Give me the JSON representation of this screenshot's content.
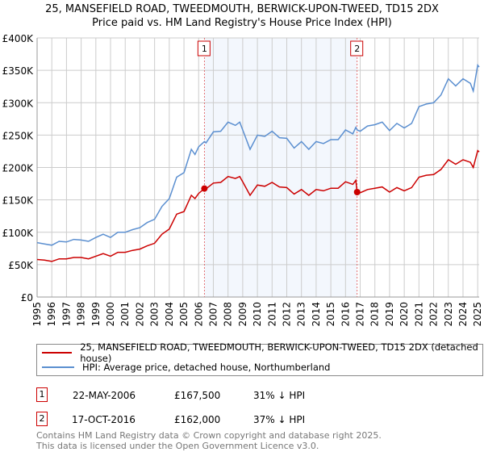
{
  "chart_data": {
    "type": "line",
    "title": "25, MANSEFIELD ROAD, TWEEDMOUTH, BERWICK-UPON-TWEED, TD15 2DX",
    "subtitle": "Price paid vs. HM Land Registry's House Price Index (HPI)",
    "xlim": [
      1995,
      2025.1
    ],
    "ylim": [
      0,
      400000
    ],
    "x_ticks": [
      "1995",
      "1996",
      "1997",
      "1998",
      "1999",
      "2000",
      "2001",
      "2002",
      "2003",
      "2004",
      "2005",
      "2006",
      "2007",
      "2008",
      "2009",
      "2010",
      "2011",
      "2012",
      "2013",
      "2014",
      "2015",
      "2016",
      "2017",
      "2018",
      "2019",
      "2020",
      "2021",
      "2022",
      "2023",
      "2024",
      "2025"
    ],
    "y_ticks": [
      {
        "v": 0,
        "label": "£0"
      },
      {
        "v": 50000,
        "label": "£50K"
      },
      {
        "v": 100000,
        "label": "£100K"
      },
      {
        "v": 150000,
        "label": "£150K"
      },
      {
        "v": 200000,
        "label": "£200K"
      },
      {
        "v": 250000,
        "label": "£250K"
      },
      {
        "v": 300000,
        "label": "£300K"
      },
      {
        "v": 350000,
        "label": "£350K"
      },
      {
        "v": 400000,
        "label": "£400K"
      }
    ],
    "x": [
      1995,
      1995.5,
      1996,
      1996.5,
      1997,
      1997.5,
      1998,
      1998.5,
      1999,
      1999.5,
      2000,
      2000.5,
      2001,
      2001.5,
      2002,
      2002.5,
      2003,
      2003.5,
      2004,
      2004.5,
      2005,
      2005.5,
      2005.75,
      2006,
      2006.39,
      2006.5,
      2007,
      2007.5,
      2008,
      2008.5,
      2008.8,
      2009,
      2009.5,
      2010,
      2010.5,
      2011,
      2011.5,
      2012,
      2012.5,
      2013,
      2013.5,
      2014,
      2014.5,
      2015,
      2015.5,
      2016,
      2016.5,
      2016.7,
      2016.79,
      2017,
      2017.5,
      2018,
      2018.5,
      2019,
      2019.5,
      2020,
      2020.5,
      2021,
      2021.5,
      2022,
      2022.5,
      2023,
      2023.5,
      2024,
      2024.5,
      2024.7,
      2025,
      2025.1
    ],
    "series": [
      {
        "name": "25, MANSEFIELD ROAD, TWEEDMOUTH, BERWICK-UPON-TWEED, TD15 2DX (detached house)",
        "color": "#cc0000",
        "values": [
          58,
          57,
          55,
          59,
          59,
          61,
          61,
          59,
          63,
          67,
          63,
          69,
          69,
          72,
          74,
          79,
          83,
          97,
          105,
          128,
          132,
          157,
          152,
          160,
          167.5,
          167,
          176,
          177,
          186,
          183,
          186,
          178,
          157,
          173,
          171,
          177,
          170,
          169,
          159,
          166,
          157,
          166,
          164,
          168,
          168,
          178,
          174,
          180,
          162,
          161,
          166,
          168,
          170,
          162,
          169,
          164,
          169,
          185,
          188,
          189,
          197,
          212,
          205,
          212,
          208,
          200,
          226,
          224
        ]
      },
      {
        "name": "HPI: Average price, detached house, Northumberland",
        "color": "#5b8fd0",
        "values": [
          84,
          82,
          80,
          86,
          85,
          89,
          88,
          86,
          92,
          97,
          92,
          100,
          100,
          104,
          107,
          115,
          120,
          140,
          152,
          185,
          192,
          228,
          220,
          232,
          240,
          238,
          255,
          256,
          270,
          265,
          270,
          258,
          228,
          250,
          248,
          256,
          246,
          245,
          230,
          240,
          228,
          240,
          237,
          243,
          243,
          258,
          252,
          262,
          258,
          256,
          264,
          266,
          270,
          257,
          268,
          261,
          268,
          294,
          298,
          300,
          312,
          337,
          326,
          337,
          330,
          318,
          358,
          355
        ]
      }
    ],
    "value_unit": "thousand GBP",
    "shaded_range": [
      2006.39,
      2016.79
    ],
    "sales": [
      {
        "id": "1",
        "x": 2006.39,
        "date": "22-MAY-2006",
        "price": "£167,500",
        "value": 167.5,
        "hpi_diff": "31% ↓ HPI"
      },
      {
        "id": "2",
        "x": 2016.79,
        "date": "17-OCT-2016",
        "price": "£162,000",
        "value": 162,
        "hpi_diff": "37% ↓ HPI"
      }
    ]
  },
  "footer": [
    "Contains HM Land Registry data © Crown copyright and database right 2025.",
    "This data is licensed under the Open Government Licence v3.0."
  ]
}
